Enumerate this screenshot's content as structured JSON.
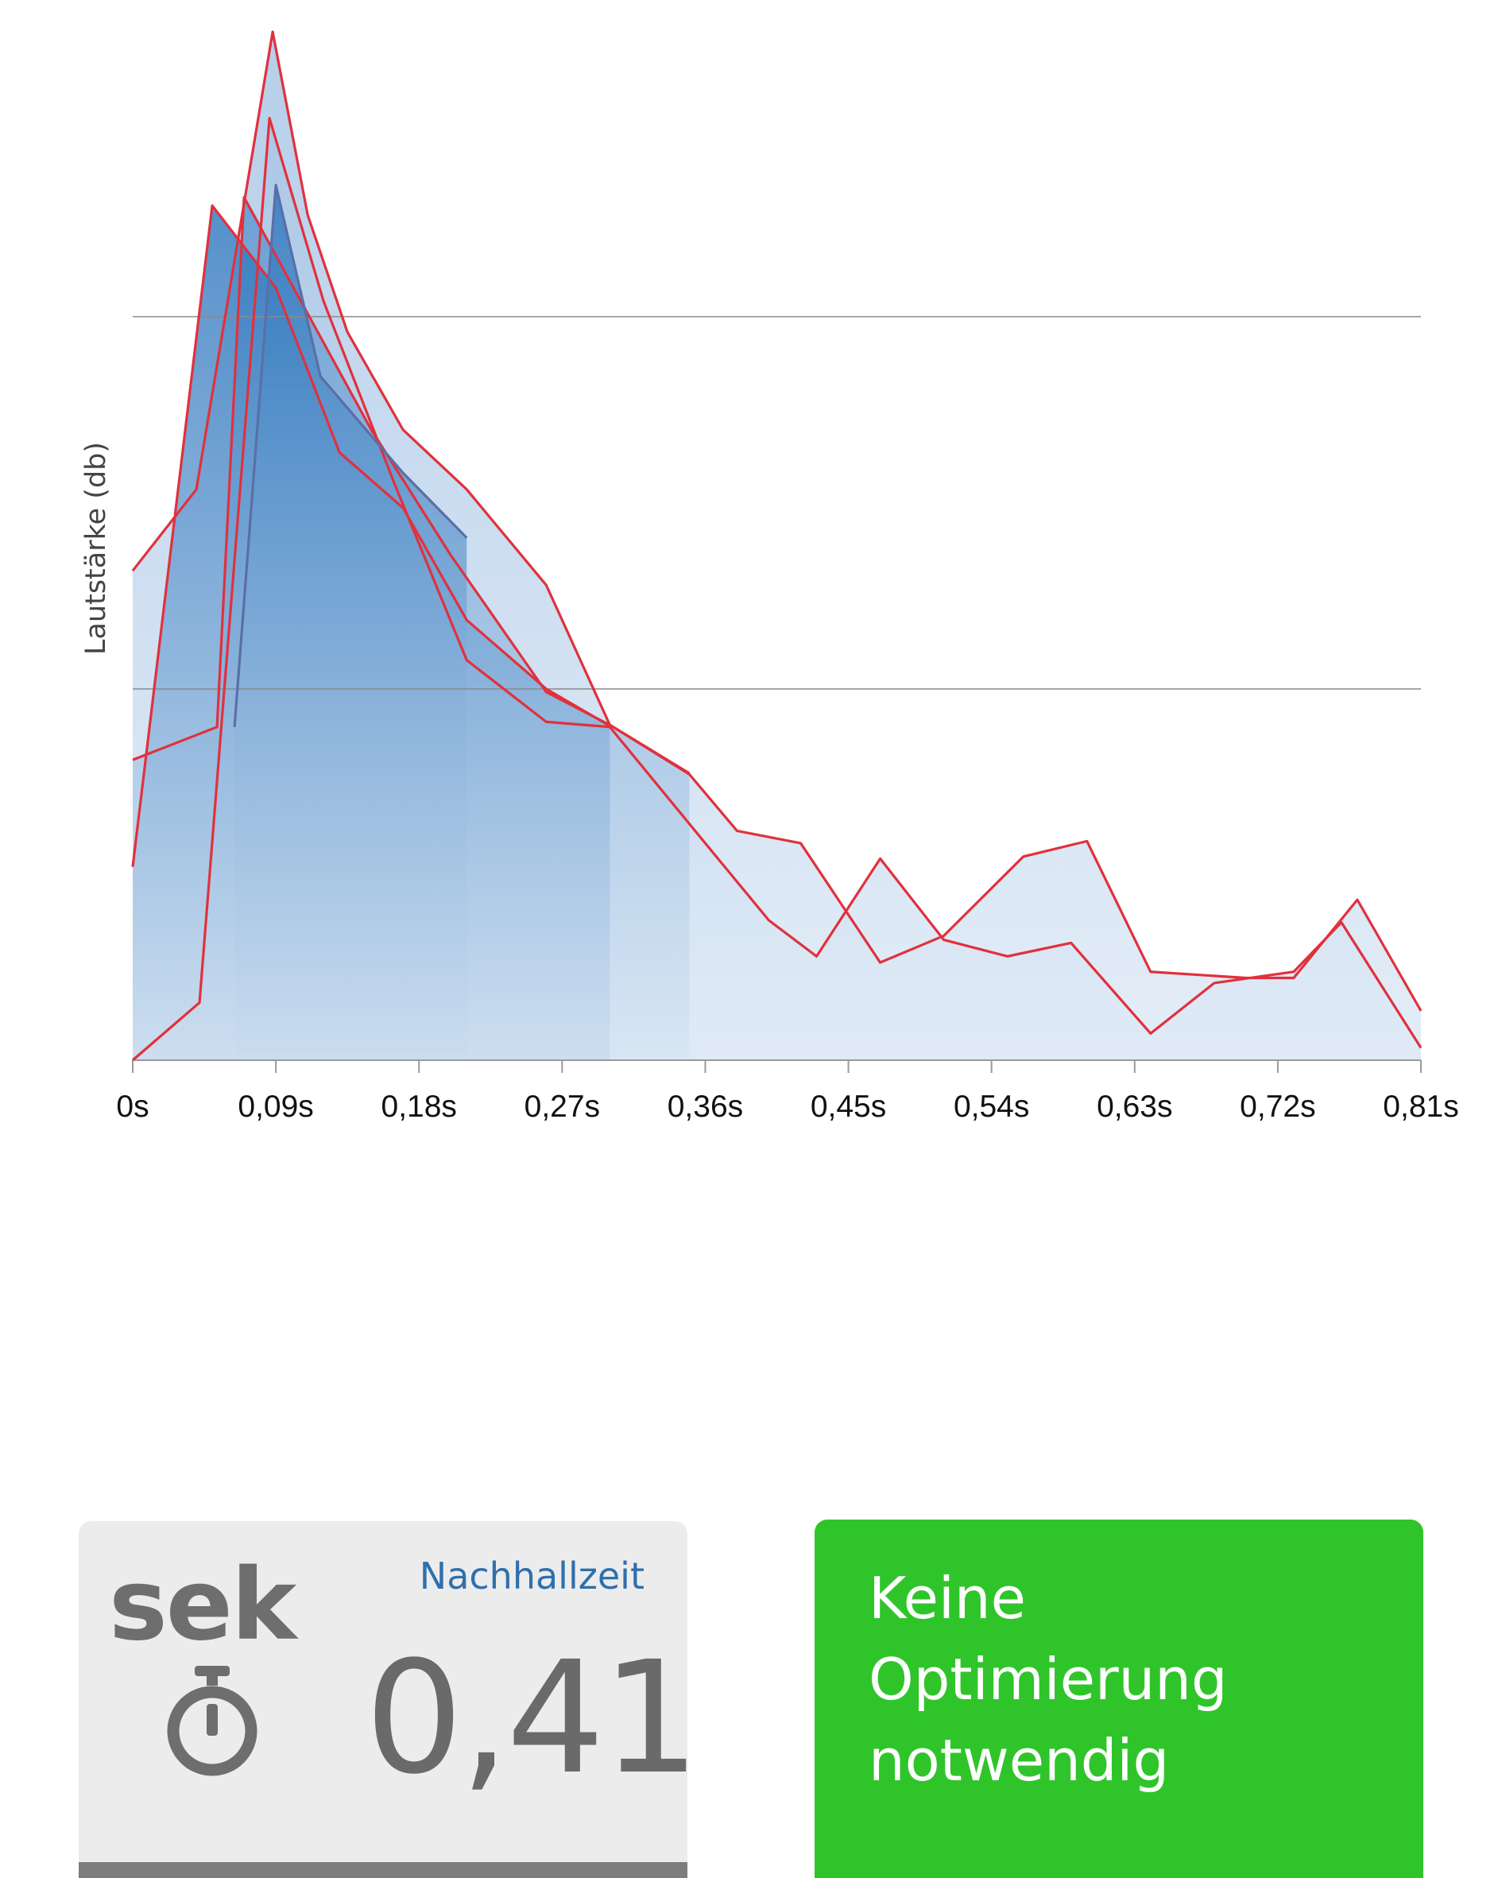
{
  "chart_data": {
    "type": "area",
    "title": "",
    "xlabel": "",
    "ylabel": "Lautstärke (db)",
    "x_tick_labels": [
      "0s",
      "0,09s",
      "0,18s",
      "0,27s",
      "0,36s",
      "0,45s",
      "0,54s",
      "0,63s",
      "0,72s",
      "0,81s"
    ],
    "x_tick_values": [
      0,
      0.09,
      0.18,
      0.27,
      0.36,
      0.45,
      0.54,
      0.63,
      0.72,
      0.81
    ],
    "xlim": [
      0,
      0.81
    ],
    "ylim": [
      0,
      100
    ],
    "gridlines_y": [
      36.1,
      72.3
    ],
    "series": [
      {
        "points": [
          [
            0,
            47.6
          ],
          [
            0.04,
            55.5
          ],
          [
            0.088,
            100
          ],
          [
            0.11,
            82.2
          ],
          [
            0.135,
            70.8
          ],
          [
            0.17,
            61.3
          ],
          [
            0.21,
            55.5
          ],
          [
            0.26,
            46.2
          ],
          [
            0.3,
            32.6
          ],
          [
            0.35,
            27.8
          ],
          [
            0.38,
            22.3
          ],
          [
            0.42,
            21.1
          ],
          [
            0.47,
            9.5
          ],
          [
            0.51,
            12.1
          ],
          [
            0.56,
            19.8
          ],
          [
            0.6,
            21.3
          ],
          [
            0.64,
            8.6
          ],
          [
            0.7,
            8.0
          ],
          [
            0.73,
            8.0
          ],
          [
            0.77,
            15.6
          ],
          [
            0.81,
            4.8
          ]
        ]
      },
      {
        "points": [
          [
            0,
            0
          ],
          [
            0.042,
            5.6
          ],
          [
            0.086,
            91.6
          ],
          [
            0.12,
            73.8
          ],
          [
            0.165,
            55.9
          ],
          [
            0.21,
            38.9
          ],
          [
            0.26,
            32.9
          ],
          [
            0.3,
            32.4
          ],
          [
            0.36,
            21.1
          ],
          [
            0.4,
            13.6
          ],
          [
            0.43,
            10.1
          ],
          [
            0.47,
            19.6
          ],
          [
            0.51,
            11.7
          ],
          [
            0.55,
            10.1
          ],
          [
            0.59,
            11.4
          ],
          [
            0.64,
            2.6
          ],
          [
            0.68,
            7.5
          ],
          [
            0.73,
            8.6
          ],
          [
            0.76,
            13.4
          ],
          [
            0.81,
            1.2
          ]
        ]
      },
      {
        "points": [
          [
            0,
            29.2
          ],
          [
            0.053,
            32.4
          ],
          [
            0.07,
            83.9
          ],
          [
            0.15,
            61.3
          ],
          [
            0.2,
            49.1
          ],
          [
            0.26,
            35.8
          ],
          [
            0.3,
            32.6
          ],
          [
            0.35,
            27.9
          ]
        ]
      },
      {
        "points": [
          [
            0,
            18.8
          ],
          [
            0.05,
            83.1
          ],
          [
            0.09,
            75.1
          ],
          [
            0.13,
            59.1
          ],
          [
            0.17,
            53.7
          ],
          [
            0.21,
            42.8
          ],
          [
            0.26,
            36.1
          ],
          [
            0.3,
            32.5
          ]
        ]
      },
      {
        "points": [
          [
            0.064,
            32.4
          ],
          [
            0.09,
            85.1
          ],
          [
            0.118,
            66.5
          ],
          [
            0.17,
            57.1
          ],
          [
            0.21,
            50.8
          ]
        ]
      }
    ],
    "grid": true,
    "legend": "none"
  },
  "colors": {
    "line": "#e0313d",
    "area_dark": "#2f79bf",
    "area_light": "#cfe0f1",
    "grid": "#8a8a8a",
    "ok_green": "#2fc52a",
    "card_gray": "#ececec"
  },
  "result_card": {
    "unit": "sek",
    "title": "Nachhallzeit",
    "value": "0,41",
    "icon": "stopwatch-icon"
  },
  "recommendation": {
    "text": "Keine Optimierung notwendig"
  }
}
